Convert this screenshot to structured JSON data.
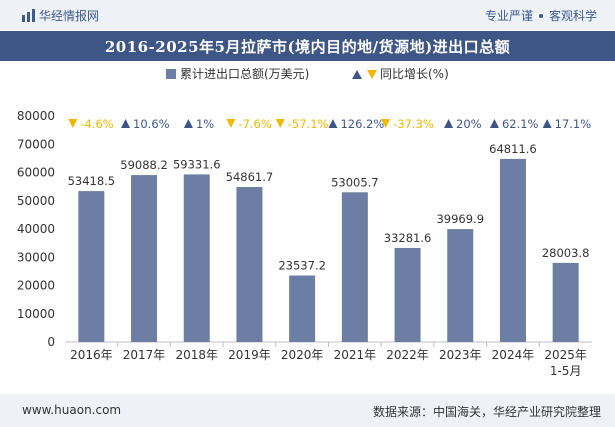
{
  "header": {
    "brand": "华经情报网",
    "tagline_left": "专业严谨",
    "tagline_right": "客观科学"
  },
  "title": "2016-2025年5月拉萨市(境内目的地/货源地)进出口总额",
  "footer": {
    "url": "www.huaon.com",
    "source": "数据来源：中国海关，华经产业研究院整理"
  },
  "colors": {
    "bar": "#6d7ea4",
    "up_arrow": "#3e5686",
    "down_arrow": "#f0b800",
    "title_bg": "#3e5686"
  },
  "chart_data": {
    "type": "bar",
    "categories": [
      "2016年",
      "2017年",
      "2018年",
      "2019年",
      "2020年",
      "2021年",
      "2022年",
      "2023年",
      "2024年",
      "2025年\n1-5月"
    ],
    "series": [
      {
        "name": "累计进出口总额(万美元)",
        "values": [
          53418.5,
          59088.2,
          59331.6,
          54861.7,
          23537.2,
          53005.7,
          33281.6,
          39969.9,
          64811.6,
          28003.8
        ]
      },
      {
        "name": "同比增长(%)",
        "values": [
          -4.6,
          10.6,
          1,
          -7.6,
          -57.1,
          126.2,
          -37.3,
          20,
          62.1,
          17.1
        ],
        "labels": [
          "-4.6%",
          "10.6%",
          "1%",
          "-7.6%",
          "-57.1%",
          "126.2%",
          "-37.3%",
          "20%",
          "62.1%",
          "17.1%"
        ]
      }
    ],
    "ylim": [
      0,
      80000
    ],
    "yticks": [
      0,
      10000,
      20000,
      30000,
      40000,
      50000,
      60000,
      70000,
      80000
    ],
    "legend_position": "top-center",
    "grid": false
  }
}
